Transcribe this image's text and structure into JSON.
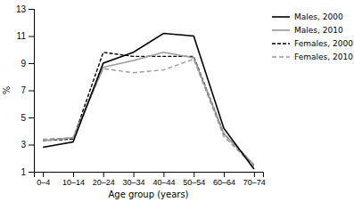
{
  "chart_data": {
    "type": "line",
    "categories": [
      "0–4",
      "10–14",
      "20–24",
      "30–34",
      "40–44",
      "50–54",
      "60–64",
      "70–74"
    ],
    "series": [
      {
        "name": "Males, 2000",
        "color": "#000000",
        "line_style": "solid",
        "values": [
          2.8,
          3.2,
          9.0,
          9.8,
          11.2,
          11.0,
          4.2,
          1.2
        ]
      },
      {
        "name": "Males, 2010",
        "color": "#999999",
        "line_style": "solid",
        "values": [
          3.3,
          3.5,
          8.7,
          9.2,
          9.8,
          9.4,
          3.8,
          1.5
        ]
      },
      {
        "name": "Females, 2000",
        "color": "#000000",
        "line_style": "dashed",
        "values": [
          3.3,
          3.4,
          9.8,
          9.5,
          9.5,
          9.5,
          3.8,
          1.5
        ]
      },
      {
        "name": "Females, 2010",
        "color": "#999999",
        "line_style": "dashed",
        "values": [
          3.4,
          3.5,
          8.6,
          8.3,
          8.5,
          9.3,
          3.6,
          1.4
        ]
      }
    ],
    "xlabel": "Age group (years)",
    "ylabel": "%",
    "ylim": [
      1,
      13
    ],
    "yticks": [
      1,
      3,
      5,
      7,
      9,
      11,
      13
    ],
    "grid": false,
    "legend": "right"
  }
}
